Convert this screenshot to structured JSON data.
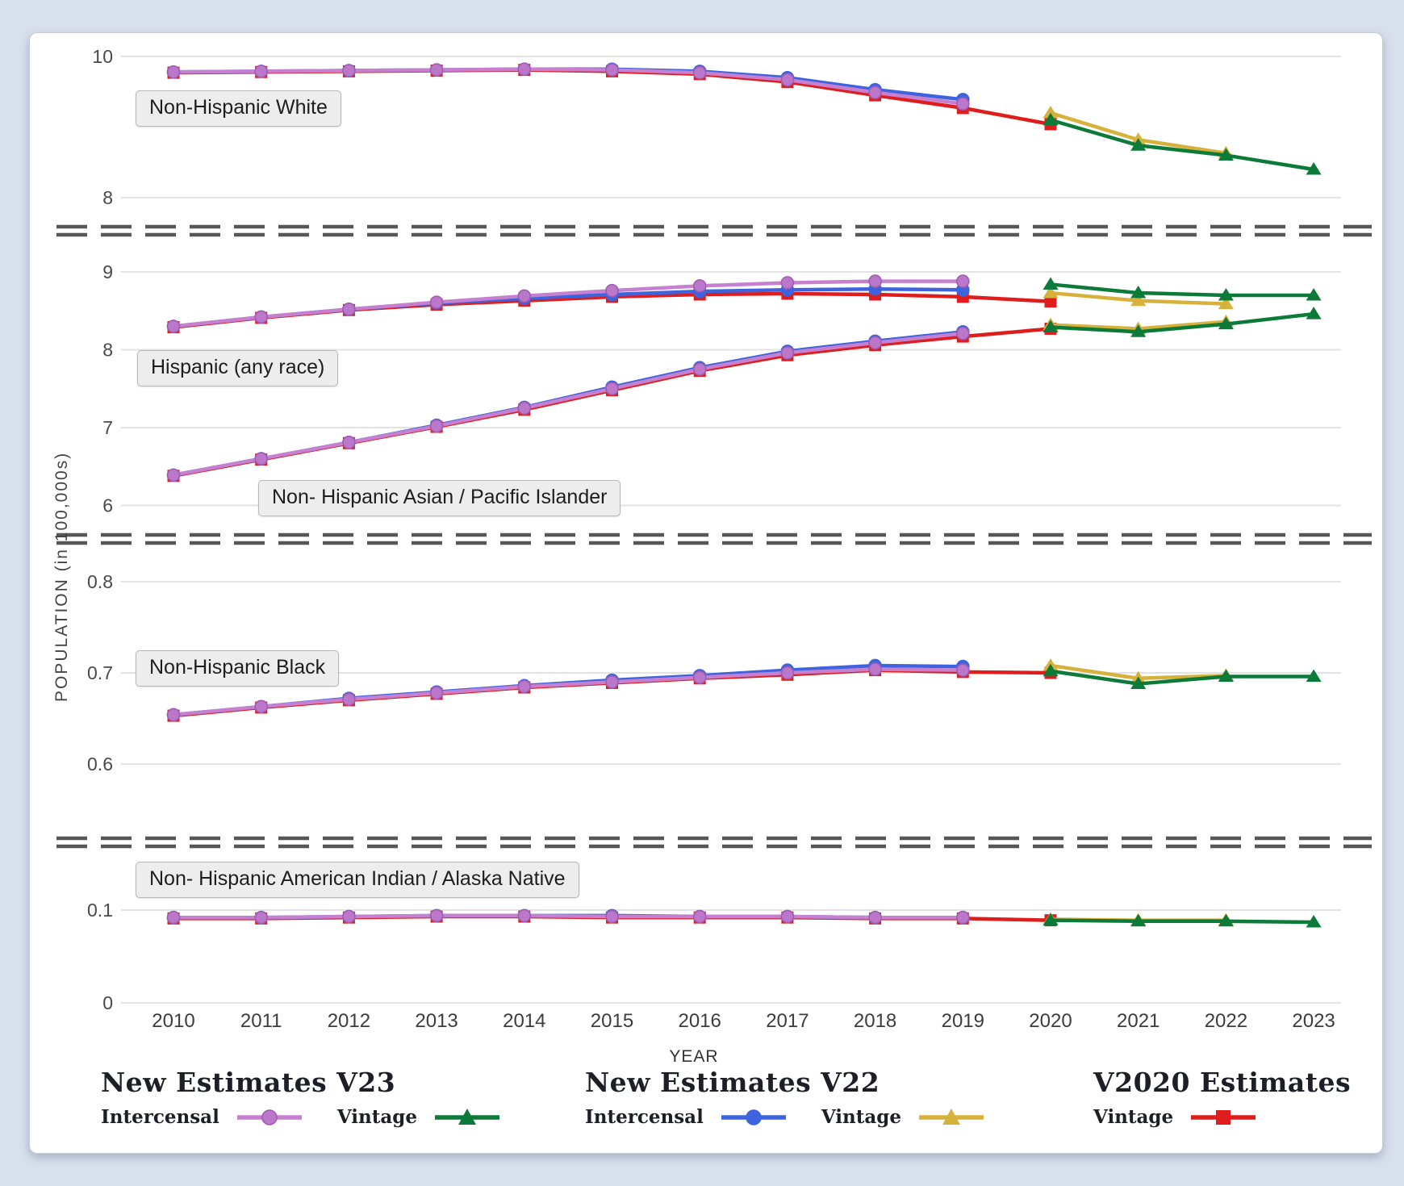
{
  "page": {
    "background": "#d9e0ed",
    "card_background": "#ffffff",
    "gridline_color": "#e3e3e3",
    "separator_color": "#575757",
    "tick_text_color": "#4a4a4a"
  },
  "chart_data": {
    "type": "line",
    "title": "",
    "xlabel": "YEAR",
    "ylabel": "POPULATION (in 100,000s)",
    "x_years": [
      2010,
      2011,
      2012,
      2013,
      2014,
      2015,
      2016,
      2017,
      2018,
      2019,
      2020,
      2021,
      2022,
      2023
    ],
    "grid": true,
    "series_styles": {
      "v23_intercensal": {
        "name": "New Estimates V23 — Intercensal",
        "color": "#c77fcf",
        "marker_fill": "#bb78cb",
        "marker_stroke": "#a05cb4",
        "marker": "circle"
      },
      "v23_vintage": {
        "name": "New Estimates V23 — Vintage",
        "color": "#0c7a38",
        "marker_fill": "#0c7a38",
        "marker_stroke": "#0c7a38",
        "marker": "triangle"
      },
      "v22_intercensal": {
        "name": "New Estimates V22 — Intercensal",
        "color": "#3e63de",
        "marker_fill": "#3e63de",
        "marker_stroke": "#3e63de",
        "marker": "circle"
      },
      "v22_vintage": {
        "name": "New Estimates V22 — Vintage",
        "color": "#d6b23d",
        "marker_fill": "#d6b23d",
        "marker_stroke": "#d6b23d",
        "marker": "triangle"
      },
      "v2020_vintage": {
        "name": "V2020 Estimates — Vintage",
        "color": "#df1d1d",
        "marker_fill": "#df1d1d",
        "marker_stroke": "#df1d1d",
        "marker": "square"
      }
    },
    "panels": [
      {
        "geo": "white",
        "yticks": [
          {
            "label": "10",
            "value": 10
          },
          {
            "label": "8",
            "value": 8
          }
        ],
        "clusters": [
          {
            "label": "Non-Hispanic White",
            "series": [
              {
                "style": "v2020_vintage",
                "start_year": 2010,
                "values": [
                  9.77,
                  9.78,
                  9.79,
                  9.8,
                  9.81,
                  9.79,
                  9.75,
                  9.64,
                  9.45,
                  9.27,
                  9.04
                ]
              },
              {
                "style": "v22_intercensal",
                "start_year": 2010,
                "values": [
                  9.78,
                  9.79,
                  9.8,
                  9.81,
                  9.82,
                  9.82,
                  9.79,
                  9.7,
                  9.53,
                  9.39
                ]
              },
              {
                "style": "v23_intercensal",
                "start_year": 2010,
                "values": [
                  9.78,
                  9.79,
                  9.8,
                  9.81,
                  9.82,
                  9.81,
                  9.77,
                  9.67,
                  9.49,
                  9.33
                ]
              },
              {
                "style": "v22_vintage",
                "start_year": 2020,
                "values": [
                  9.2,
                  8.82,
                  8.63
                ]
              },
              {
                "style": "v23_vintage",
                "start_year": 2020,
                "values": [
                  9.1,
                  8.74,
                  8.6,
                  8.4
                ]
              }
            ]
          }
        ]
      },
      {
        "geo": "hispasian",
        "yticks": [
          {
            "label": "9",
            "value": 9
          },
          {
            "label": "8",
            "value": 8
          },
          {
            "label": "7",
            "value": 7
          },
          {
            "label": "6",
            "value": 6
          }
        ],
        "clusters": [
          {
            "label": "Hispanic (any race)",
            "series": [
              {
                "style": "v2020_vintage",
                "start_year": 2010,
                "values": [
                  8.29,
                  8.41,
                  8.51,
                  8.58,
                  8.63,
                  8.68,
                  8.71,
                  8.72,
                  8.71,
                  8.68,
                  8.62
                ]
              },
              {
                "style": "v22_intercensal",
                "start_year": 2010,
                "values": [
                  8.3,
                  8.42,
                  8.52,
                  8.6,
                  8.66,
                  8.71,
                  8.75,
                  8.77,
                  8.78,
                  8.77
                ]
              },
              {
                "style": "v23_intercensal",
                "start_year": 2010,
                "values": [
                  8.3,
                  8.42,
                  8.52,
                  8.61,
                  8.69,
                  8.76,
                  8.82,
                  8.86,
                  8.88,
                  8.88
                ]
              },
              {
                "style": "v22_vintage",
                "start_year": 2020,
                "values": [
                  8.73,
                  8.63,
                  8.59
                ]
              },
              {
                "style": "v23_vintage",
                "start_year": 2020,
                "values": [
                  8.84,
                  8.73,
                  8.7,
                  8.7
                ]
              }
            ]
          },
          {
            "label": "Non- Hispanic Asian / Pacific Islander",
            "series": [
              {
                "style": "v2020_vintage",
                "start_year": 2010,
                "values": [
                  6.38,
                  6.59,
                  6.8,
                  7.01,
                  7.23,
                  7.48,
                  7.73,
                  7.93,
                  8.06,
                  8.17,
                  8.27
                ]
              },
              {
                "style": "v22_intercensal",
                "start_year": 2010,
                "values": [
                  6.39,
                  6.6,
                  6.81,
                  7.03,
                  7.26,
                  7.52,
                  7.77,
                  7.98,
                  8.11,
                  8.23
                ]
              },
              {
                "style": "v23_intercensal",
                "start_year": 2010,
                "values": [
                  6.39,
                  6.6,
                  6.81,
                  7.02,
                  7.25,
                  7.5,
                  7.75,
                  7.96,
                  8.09,
                  8.21
                ]
              },
              {
                "style": "v22_vintage",
                "start_year": 2020,
                "values": [
                  8.32,
                  8.27,
                  8.36
                ]
              },
              {
                "style": "v23_vintage",
                "start_year": 2020,
                "values": [
                  8.29,
                  8.23,
                  8.33,
                  8.46
                ]
              }
            ]
          }
        ]
      },
      {
        "geo": "black",
        "yticks": [
          {
            "label": "0.8",
            "value": 0.8
          },
          {
            "label": "0.7",
            "value": 0.7
          },
          {
            "label": "0.6",
            "value": 0.6
          }
        ],
        "clusters": [
          {
            "label": "Non-Hispanic Black",
            "series": [
              {
                "style": "v2020_vintage",
                "start_year": 2010,
                "values": [
                  0.653,
                  0.662,
                  0.67,
                  0.677,
                  0.684,
                  0.689,
                  0.694,
                  0.698,
                  0.703,
                  0.701,
                  0.7
                ]
              },
              {
                "style": "v22_intercensal",
                "start_year": 2010,
                "values": [
                  0.654,
                  0.663,
                  0.672,
                  0.679,
                  0.686,
                  0.692,
                  0.697,
                  0.703,
                  0.708,
                  0.707
                ]
              },
              {
                "style": "v23_intercensal",
                "start_year": 2010,
                "values": [
                  0.654,
                  0.663,
                  0.671,
                  0.678,
                  0.685,
                  0.69,
                  0.695,
                  0.7,
                  0.704,
                  0.703
                ]
              },
              {
                "style": "v22_vintage",
                "start_year": 2020,
                "values": [
                  0.708,
                  0.694,
                  0.697
                ]
              },
              {
                "style": "v23_vintage",
                "start_year": 2020,
                "values": [
                  0.702,
                  0.688,
                  0.696,
                  0.696
                ]
              }
            ]
          }
        ]
      },
      {
        "geo": "aian",
        "yticks": [
          {
            "label": "0.1",
            "value": 0.1
          },
          {
            "label": "0",
            "value": 0
          }
        ],
        "clusters": [
          {
            "label": "Non- Hispanic American Indian / Alaska Native",
            "series": [
              {
                "style": "v2020_vintage",
                "start_year": 2010,
                "values": [
                  0.091,
                  0.091,
                  0.092,
                  0.093,
                  0.093,
                  0.092,
                  0.092,
                  0.092,
                  0.091,
                  0.091,
                  0.089
                ]
              },
              {
                "style": "v22_intercensal",
                "start_year": 2010,
                "values": [
                  0.092,
                  0.092,
                  0.093,
                  0.094,
                  0.094,
                  0.094,
                  0.093,
                  0.093,
                  0.092,
                  0.092
                ]
              },
              {
                "style": "v23_intercensal",
                "start_year": 2010,
                "values": [
                  0.092,
                  0.092,
                  0.093,
                  0.094,
                  0.094,
                  0.093,
                  0.093,
                  0.093,
                  0.092,
                  0.092
                ]
              },
              {
                "style": "v22_vintage",
                "start_year": 2020,
                "values": [
                  0.09,
                  0.089,
                  0.089
                ]
              },
              {
                "style": "v23_vintage",
                "start_year": 2020,
                "values": [
                  0.089,
                  0.088,
                  0.088,
                  0.087
                ]
              }
            ]
          }
        ]
      }
    ],
    "legend": {
      "position": "bottom",
      "groups": [
        {
          "title": "New Estimates V23",
          "items": [
            {
              "label": "Intercensal",
              "style": "v23_intercensal"
            },
            {
              "label": "Vintage",
              "style": "v23_vintage"
            }
          ]
        },
        {
          "title": "New Estimates V22",
          "items": [
            {
              "label": "Intercensal",
              "style": "v22_intercensal"
            },
            {
              "label": "Vintage",
              "style": "v22_vintage"
            }
          ]
        },
        {
          "title": "V2020 Estimates",
          "items": [
            {
              "label": "Vintage",
              "style": "v2020_vintage"
            }
          ]
        }
      ]
    }
  }
}
